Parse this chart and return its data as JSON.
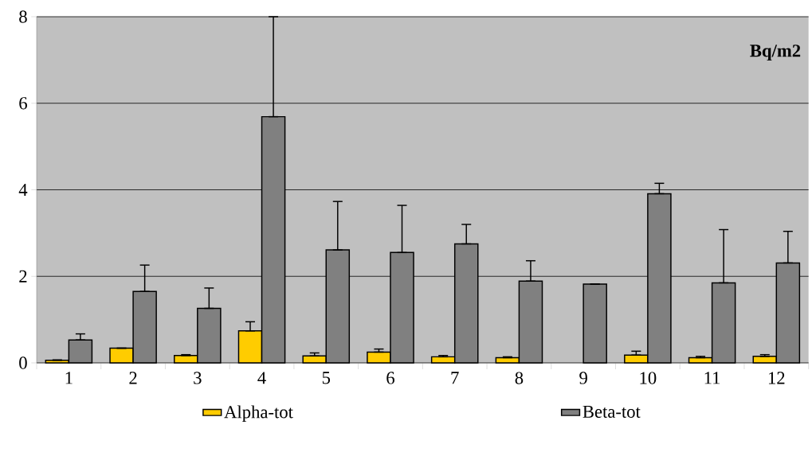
{
  "chart_data": {
    "type": "bar",
    "ylabel": "Bq/m2",
    "categories": [
      "1",
      "2",
      "3",
      "4",
      "5",
      "6",
      "7",
      "8",
      "9",
      "10",
      "11",
      "12"
    ],
    "series": [
      {
        "name": "Alpha-tot",
        "color": "#ffcc00",
        "values": [
          0.06,
          0.34,
          0.17,
          0.74,
          0.16,
          0.25,
          0.14,
          0.12,
          null,
          0.18,
          0.12,
          0.15
        ],
        "errors": [
          [
            0.06,
            0.07
          ],
          null,
          [
            0.17,
            0.19
          ],
          [
            0.74,
            0.95
          ],
          [
            0.16,
            0.23
          ],
          [
            0.25,
            0.32
          ],
          [
            0.14,
            0.17
          ],
          [
            0.12,
            0.14
          ],
          null,
          [
            0.18,
            0.27
          ],
          [
            0.12,
            0.15
          ],
          [
            0.15,
            0.19
          ]
        ]
      },
      {
        "name": "Beta-tot",
        "color": "#808080",
        "values": [
          0.53,
          1.65,
          1.26,
          5.69,
          2.61,
          2.55,
          2.75,
          1.89,
          1.82,
          3.91,
          1.85,
          2.31
        ],
        "errors": [
          [
            0.53,
            0.67
          ],
          [
            1.65,
            2.26
          ],
          [
            1.26,
            1.73
          ],
          [
            5.69,
            8.0
          ],
          [
            2.61,
            3.73
          ],
          [
            2.55,
            3.64
          ],
          [
            2.75,
            3.2
          ],
          [
            1.89,
            2.36
          ],
          null,
          [
            3.91,
            4.15
          ],
          [
            1.85,
            3.08
          ],
          [
            2.31,
            3.04
          ]
        ]
      }
    ],
    "ylim": [
      0,
      8
    ],
    "yticks": [
      0,
      2,
      4,
      6,
      8
    ],
    "grid": "y",
    "legend": "bottom"
  }
}
